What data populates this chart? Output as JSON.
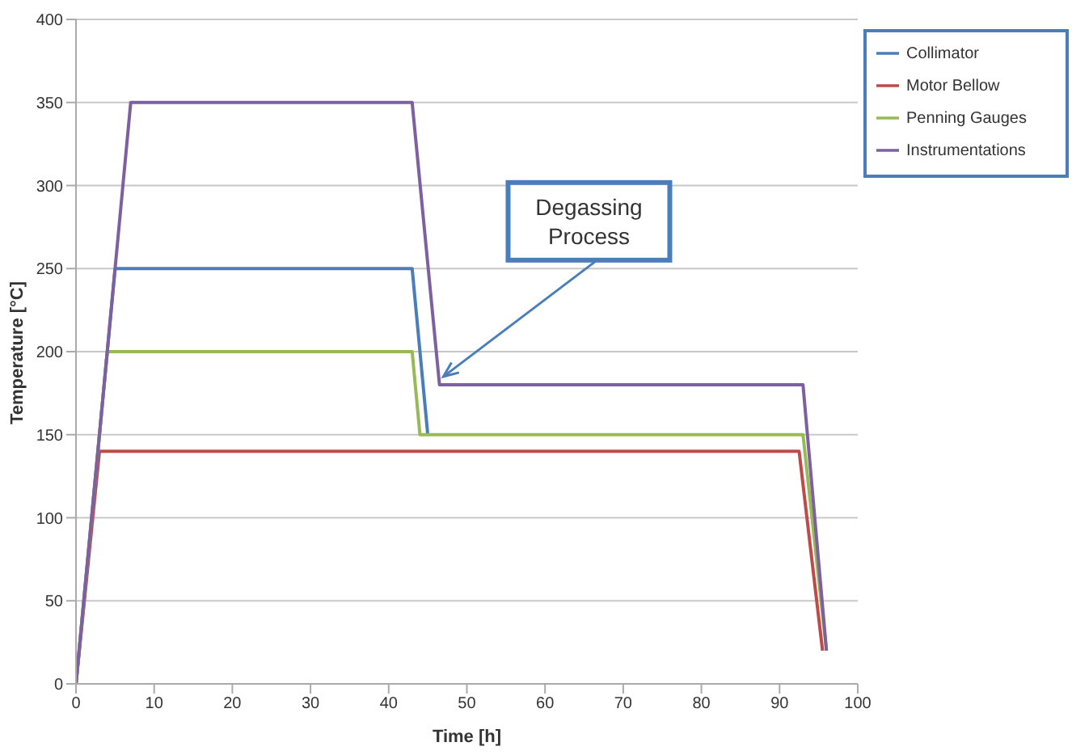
{
  "chart_data": {
    "type": "line",
    "xlabel": "Time [h]",
    "ylabel": "Temperature [°C]",
    "series": [
      {
        "name": "Collimator",
        "color": "#4a7ebb",
        "x": [
          0,
          5,
          43,
          45
        ],
        "values": [
          0,
          250,
          250,
          150
        ]
      },
      {
        "name": "Motor Bellow",
        "color": "#be4b48",
        "x": [
          0,
          3,
          92.5,
          95.5
        ],
        "values": [
          0,
          140,
          140,
          20
        ]
      },
      {
        "name": "Penning Gauges",
        "color": "#98b954",
        "x": [
          0,
          4,
          43,
          44,
          93,
          96
        ],
        "values": [
          0,
          200,
          200,
          150,
          150,
          20
        ]
      },
      {
        "name": "Instrumentations",
        "color": "#7d60a0",
        "x": [
          0,
          7,
          43,
          46.5,
          93,
          96
        ],
        "values": [
          0,
          350,
          350,
          180,
          180,
          20
        ]
      }
    ],
    "xlim": [
      0,
      100
    ],
    "xticks": [
      0,
      10,
      20,
      30,
      40,
      50,
      60,
      70,
      80,
      90,
      100
    ],
    "ylim": [
      0,
      400
    ],
    "yticks": [
      0,
      50,
      100,
      150,
      200,
      250,
      300,
      350,
      400
    ],
    "grid": "y",
    "legend": "top right",
    "marker": "none",
    "line_style": "solid",
    "annotations": [
      {
        "text": "Degassing Process",
        "x": 47,
        "y": 185
      }
    ]
  }
}
